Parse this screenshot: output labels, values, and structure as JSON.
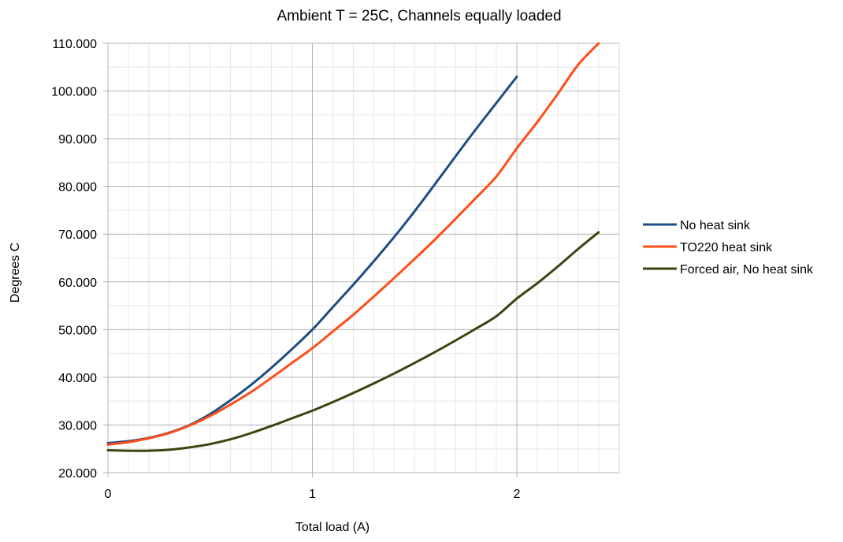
{
  "chart_data": {
    "type": "line",
    "title": "Ambient T = 25C, Channels equally loaded",
    "xlabel": "Total load (A)",
    "ylabel": "Degrees C",
    "xlim": [
      0,
      2.5
    ],
    "ylim": [
      20,
      110
    ],
    "x_major_ticks": [
      0,
      1,
      2
    ],
    "x_minor_step": 0.1,
    "y_major_ticks": [
      20,
      30,
      40,
      50,
      60,
      70,
      80,
      90,
      100,
      110
    ],
    "y_tick_labels": [
      "20.000",
      "30.000",
      "40.000",
      "50.000",
      "60.000",
      "70.000",
      "80.000",
      "90.000",
      "100.000",
      "110.000"
    ],
    "y_minor_step": 5,
    "grid": true,
    "legend_position": "right",
    "series": [
      {
        "name": "No heat sink",
        "color": "#1d4d82",
        "x": [
          0,
          0.1,
          0.2,
          0.3,
          0.4,
          0.5,
          0.6,
          0.7,
          0.8,
          0.9,
          1.0,
          1.1,
          1.2,
          1.3,
          1.4,
          1.5,
          1.6,
          1.7,
          1.8,
          1.9,
          2.0
        ],
        "y": [
          26.2,
          26.6,
          27.3,
          28.4,
          30.0,
          32.3,
          35.2,
          38.4,
          42.0,
          45.9,
          50.0,
          54.7,
          59.4,
          64.3,
          69.4,
          74.8,
          80.5,
          86.3,
          92.0,
          97.5,
          103.0
        ]
      },
      {
        "name": "TO220 heat sink",
        "color": "#ff4d1a",
        "x": [
          0,
          0.1,
          0.2,
          0.3,
          0.4,
          0.5,
          0.6,
          0.7,
          0.8,
          0.9,
          1.0,
          1.1,
          1.2,
          1.3,
          1.4,
          1.5,
          1.6,
          1.7,
          1.8,
          1.9,
          2.0,
          2.1,
          2.2,
          2.3,
          2.4
        ],
        "y": [
          25.9,
          26.4,
          27.2,
          28.3,
          29.9,
          31.9,
          34.3,
          36.9,
          39.9,
          43.0,
          46.1,
          49.6,
          53.1,
          56.9,
          60.8,
          64.8,
          68.9,
          73.2,
          77.6,
          82.1,
          88.0,
          93.5,
          99.4,
          105.5,
          110.0
        ]
      },
      {
        "name": "Forced air, No heat sink",
        "color": "#3a4510",
        "x": [
          0,
          0.1,
          0.2,
          0.3,
          0.4,
          0.5,
          0.6,
          0.7,
          0.8,
          0.9,
          1.0,
          1.1,
          1.2,
          1.3,
          1.4,
          1.5,
          1.6,
          1.7,
          1.8,
          1.9,
          2.0,
          2.1,
          2.2,
          2.3,
          2.4
        ],
        "y": [
          24.7,
          24.6,
          24.6,
          24.8,
          25.3,
          26.0,
          27.0,
          28.3,
          29.8,
          31.4,
          33.0,
          34.8,
          36.7,
          38.7,
          40.8,
          43.0,
          45.3,
          47.7,
          50.2,
          52.8,
          56.5,
          59.7,
          63.2,
          66.9,
          70.4
        ]
      }
    ]
  }
}
